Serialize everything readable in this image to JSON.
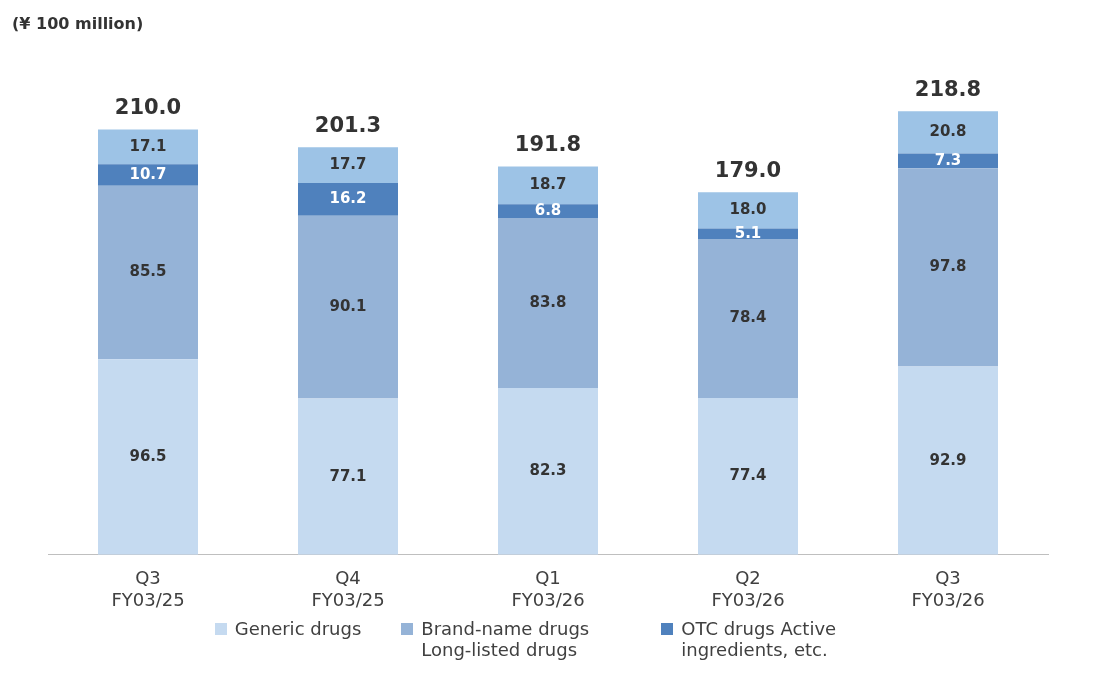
{
  "chart_data": {
    "type": "bar",
    "stacked": true,
    "ylabel": "(¥ 100 million)",
    "grid": false,
    "legend": "bottom",
    "data_labels": true,
    "categories": [
      "Q3\nFY03/25",
      "Q4\nFY03/25",
      "Q1\nFY03/26",
      "Q2\nFY03/26",
      "Q3\nFY03/26"
    ],
    "series": [
      {
        "name": "Generic drugs",
        "color": "#c5daf0",
        "values": [
          96.5,
          77.1,
          82.3,
          77.4,
          92.9
        ]
      },
      {
        "name": "Brand-name drugs Long-listed drugs",
        "color": "#95b3d7",
        "values": [
          85.5,
          90.1,
          83.8,
          78.4,
          97.8
        ]
      },
      {
        "name": "OTC drugs Active ingredients, etc.",
        "color": "#4f81bd",
        "values": [
          10.7,
          16.2,
          6.8,
          5.1,
          7.3
        ]
      },
      {
        "color": "#9dc3e6",
        "values": [
          17.1,
          17.7,
          18.7,
          18.0,
          20.8
        ],
        "value_labels": [
          "17.1",
          "17.7",
          "18.7",
          "18.0",
          "20.8"
        ]
      }
    ],
    "totals": [
      "210.0",
      "201.3",
      "191.8",
      "179.0",
      "218.8"
    ]
  }
}
